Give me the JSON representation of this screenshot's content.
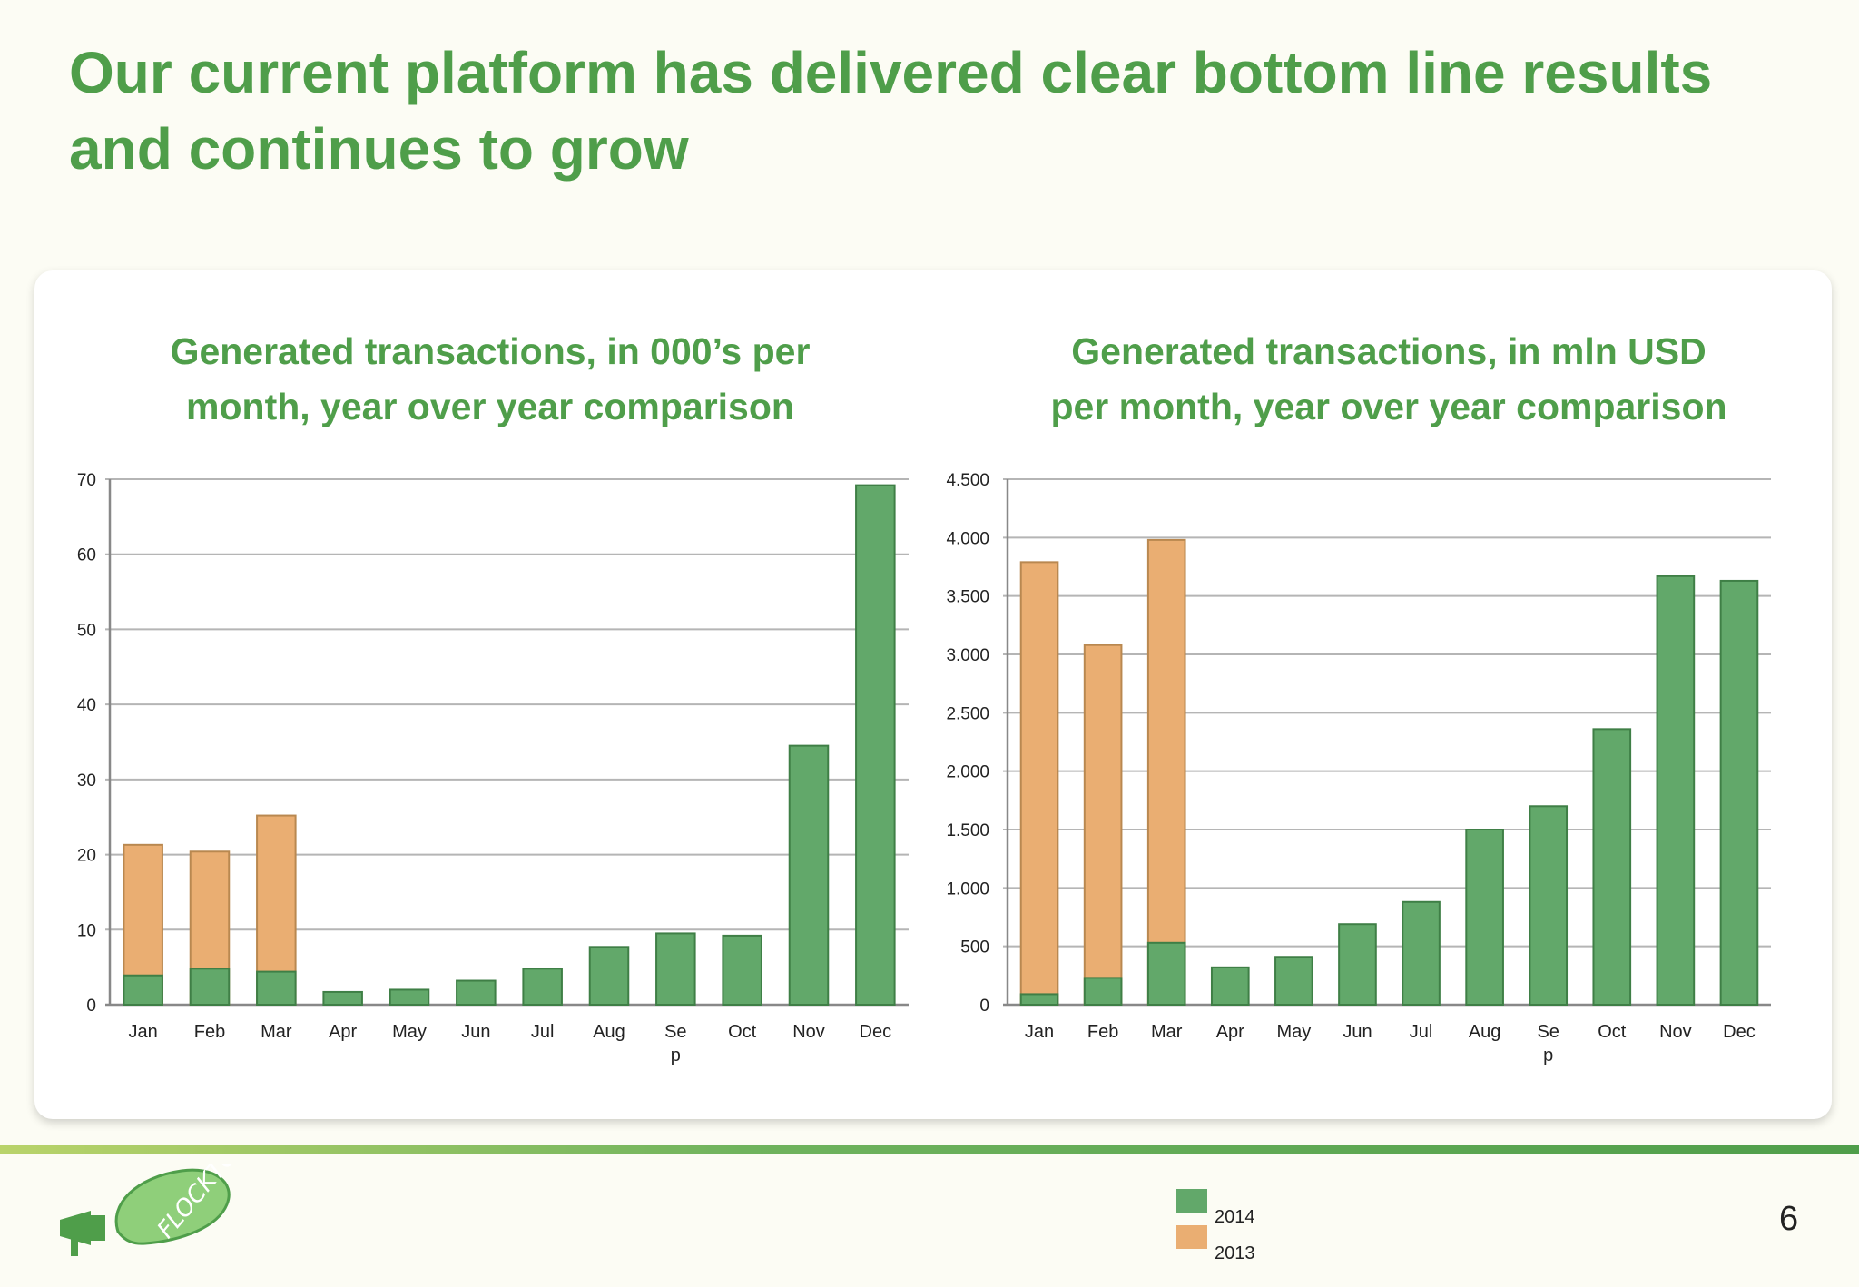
{
  "slide": {
    "title_line1": "Our current platform has delivered clear bottom line results",
    "title_line2": "and continues to grow",
    "page_number": "6"
  },
  "colors": {
    "green": "#62a86a",
    "orange": "#eaae72",
    "title_green": "#4f9e4a"
  },
  "legend": [
    {
      "label": "2014",
      "color": "#62a86a"
    },
    {
      "label": "2013",
      "color": "#eaae72"
    }
  ],
  "chart_data": [
    {
      "type": "bar",
      "title_line1": "Generated transactions, in 000’s per",
      "title_line2": "month, year over year comparison",
      "categories": [
        "Jan",
        "Feb",
        "Mar",
        "Apr",
        "May",
        "Jun",
        "Jul",
        "Aug",
        "Sep",
        "Oct",
        "Nov",
        "Dec"
      ],
      "category_labels": [
        "Jan",
        "Feb",
        "Mar",
        "Apr",
        "May",
        "Jun",
        "Jul",
        "Aug",
        "Se\np",
        "Oct",
        "Nov",
        "Dec"
      ],
      "series": [
        {
          "name": "2014",
          "values": [
            3.9,
            4.8,
            4.4,
            1.7,
            2.0,
            3.2,
            4.8,
            7.7,
            9.5,
            9.2,
            34.5,
            69.2
          ]
        },
        {
          "name": "2013",
          "values": [
            21.3,
            20.4,
            25.2,
            null,
            null,
            null,
            null,
            null,
            null,
            null,
            null,
            null
          ]
        }
      ],
      "ylim": [
        0,
        70
      ],
      "yticks": [
        0,
        10,
        20,
        30,
        40,
        50,
        60,
        70
      ],
      "ytick_labels": [
        "0",
        "10",
        "20",
        "30",
        "40",
        "50",
        "60",
        "70"
      ],
      "grid": true
    },
    {
      "type": "bar",
      "title_line1": "Generated transactions, in mln USD",
      "title_line2": "per month, year over year comparison",
      "categories": [
        "Jan",
        "Feb",
        "Mar",
        "Apr",
        "May",
        "Jun",
        "Jul",
        "Aug",
        "Sep",
        "Oct",
        "Nov",
        "Dec"
      ],
      "category_labels": [
        "Jan",
        "Feb",
        "Mar",
        "Apr",
        "May",
        "Jun",
        "Jul",
        "Aug",
        "Se\np",
        "Oct",
        "Nov",
        "Dec"
      ],
      "series": [
        {
          "name": "2014",
          "values": [
            90,
            230,
            530,
            320,
            410,
            690,
            880,
            1500,
            1700,
            2360,
            3670,
            3630
          ]
        },
        {
          "name": "2013",
          "values": [
            3790,
            3080,
            3980,
            null,
            null,
            null,
            null,
            null,
            null,
            null,
            null,
            null
          ]
        }
      ],
      "ylim": [
        0,
        4500
      ],
      "yticks": [
        0,
        500,
        1000,
        1500,
        2000,
        2500,
        3000,
        3500,
        4000,
        4500
      ],
      "ytick_labels": [
        "0",
        "500",
        "1.000",
        "1.500",
        "2.000",
        "2.500",
        "3.000",
        "3.500",
        "4.000",
        "4.500"
      ],
      "grid": true
    }
  ]
}
